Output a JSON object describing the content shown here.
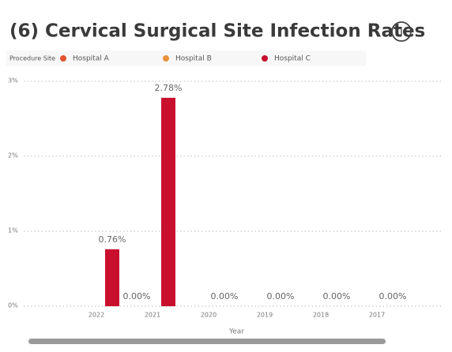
{
  "chart_data": {
    "type": "bar",
    "title": "(6) Cervical Surgical Site Infection Rates",
    "legend_title": "Procedure Site",
    "x_label": "Year",
    "categories": [
      "2022",
      "2021",
      "2020",
      "2019",
      "2018",
      "2017"
    ],
    "series": [
      {
        "name": "Hospital A",
        "color": "#e0542e",
        "values": [
          null,
          0,
          null,
          null,
          null,
          null
        ],
        "value_labels": [
          null,
          "0.00%",
          null,
          null,
          null,
          null
        ]
      },
      {
        "name": "Hospital B",
        "color": "#e8923a",
        "values": [
          null,
          null,
          null,
          null,
          null,
          null
        ]
      },
      {
        "name": "Hospital C",
        "color": "#c8102e",
        "values": [
          0.76,
          2.78,
          0,
          0,
          0,
          0
        ],
        "value_labels": [
          "0.76%",
          "2.78%",
          "0.00%",
          "0.00%",
          "0.00%",
          "0.00%"
        ]
      }
    ],
    "ylim": [
      0,
      3
    ],
    "yticks": [
      {
        "value": 0,
        "label": "0%"
      },
      {
        "value": 1,
        "label": "1%"
      },
      {
        "value": 2,
        "label": "2%"
      },
      {
        "value": 3,
        "label": "3%"
      }
    ],
    "grid": true,
    "legend_position": "top-left"
  }
}
